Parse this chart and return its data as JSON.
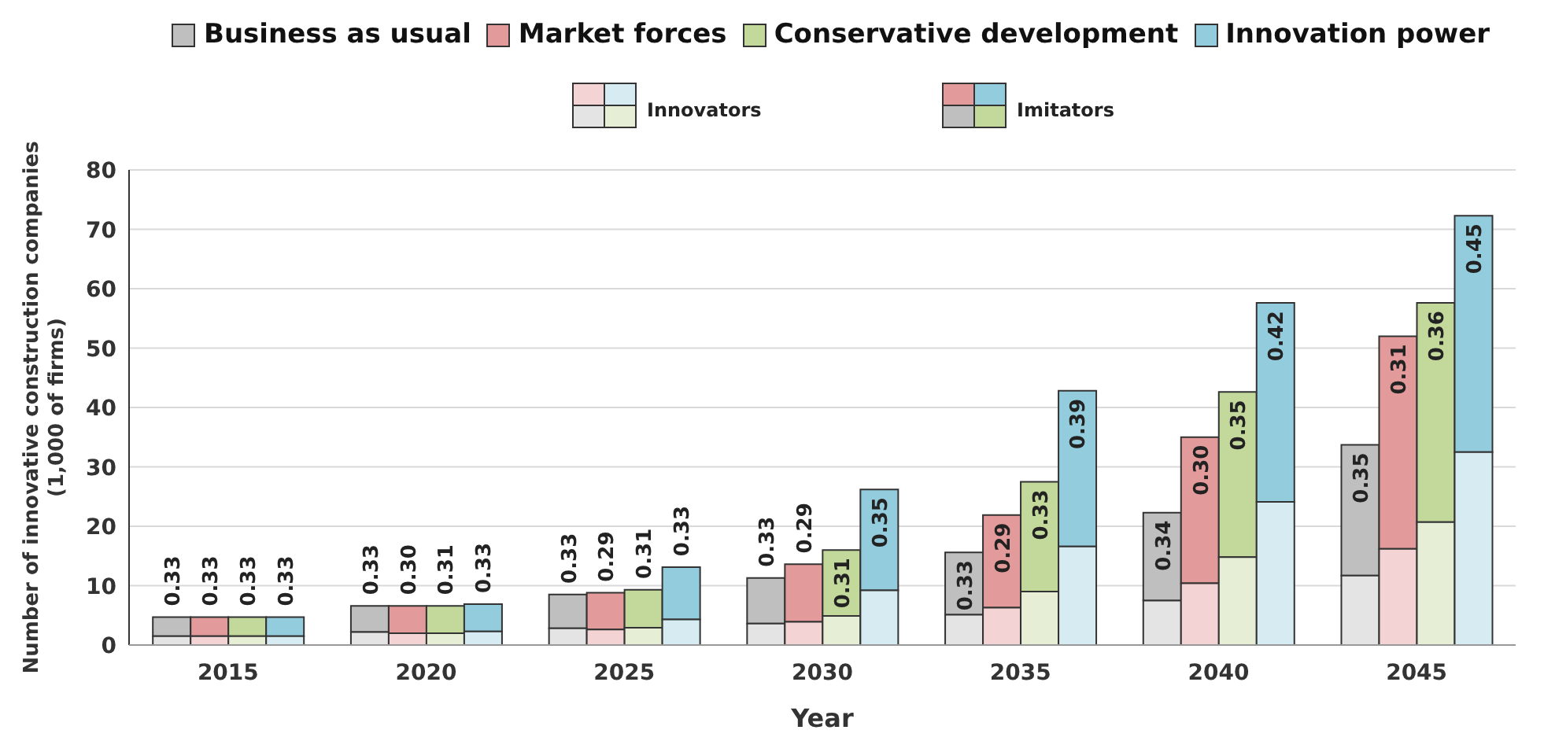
{
  "chart_data": [
    {
      "type": "bar",
      "xlabel": "Year",
      "ylabel": "Number of innovative construction companies (1,000 of firms)",
      "categories": [
        "2015",
        "2020",
        "2025",
        "2030",
        "2035",
        "2040",
        "2045"
      ],
      "ylim": [
        0,
        80
      ],
      "yticks": [
        0,
        10,
        20,
        30,
        40,
        50,
        60,
        70,
        80
      ],
      "tick_labels": "y",
      "grid": "y",
      "legend": "top",
      "series": [
        {
          "name": "Business as usual",
          "color": "#bfbfbf",
          "base": [
            1.5,
            2.2,
            2.8,
            3.6,
            5.1,
            7.5,
            11.7
          ],
          "values": [
            3.2,
            4.4,
            5.7,
            7.7,
            10.5,
            14.8,
            22.0
          ]
        },
        {
          "name": "Market forces",
          "color": "#e39a9a",
          "base": [
            1.5,
            2.0,
            2.6,
            3.9,
            6.3,
            10.4,
            16.2
          ],
          "values": [
            3.2,
            4.6,
            6.2,
            9.7,
            15.6,
            24.6,
            35.8
          ]
        },
        {
          "name": "Conservative development",
          "color": "#c3d89b",
          "base": [
            1.5,
            2.0,
            2.9,
            4.9,
            9.0,
            14.8,
            20.7
          ],
          "values": [
            3.2,
            4.6,
            6.4,
            11.1,
            18.5,
            27.8,
            36.9
          ]
        },
        {
          "name": "Innovation power",
          "color": "#93cddd",
          "base": [
            1.5,
            2.3,
            4.3,
            9.2,
            16.6,
            24.1,
            32.5
          ],
          "values": [
            3.2,
            4.6,
            8.8,
            17.0,
            26.2,
            33.5,
            39.8
          ]
        }
      ],
      "annotations": [
        "Imitators",
        "0.33",
        "0.33",
        "0.33",
        "0.33",
        "0.33",
        "0.30",
        "0.31",
        "0.33",
        "0.33",
        "0.29",
        "0.31",
        "0.33",
        "0.33",
        "0.29",
        "0.31",
        "0.35",
        "0.33",
        "0.29",
        "0.33",
        "0.39",
        "0.34",
        "0.30",
        "0.35",
        "0.42",
        "0.35",
        "0.31",
        "0.36",
        "0.45"
      ]
    },
    {
      "type": "bar",
      "categories": [
        "2015",
        "2020",
        "2025",
        "2030",
        "2035",
        "2040",
        "2045"
      ],
      "ylim": [
        0,
        80
      ],
      "tick_labels": "x",
      "annotations": [
        "Innovators"
      ],
      "series": [
        {
          "color": "#e4e4e4",
          "values": [
            1.5,
            2.2,
            2.8,
            3.6,
            5.1,
            7.5,
            11.7
          ]
        },
        {
          "color": "#f3d3d3",
          "values": [
            1.5,
            2.0,
            2.6,
            3.9,
            6.3,
            10.4,
            16.2
          ]
        },
        {
          "color": "#e6efd6",
          "values": [
            1.5,
            2.0,
            2.9,
            4.9,
            9.0,
            14.8,
            20.7
          ]
        },
        {
          "color": "#d6ecf2",
          "values": [
            1.5,
            2.3,
            4.3,
            9.2,
            16.6,
            24.1,
            32.5
          ]
        }
      ]
    }
  ]
}
